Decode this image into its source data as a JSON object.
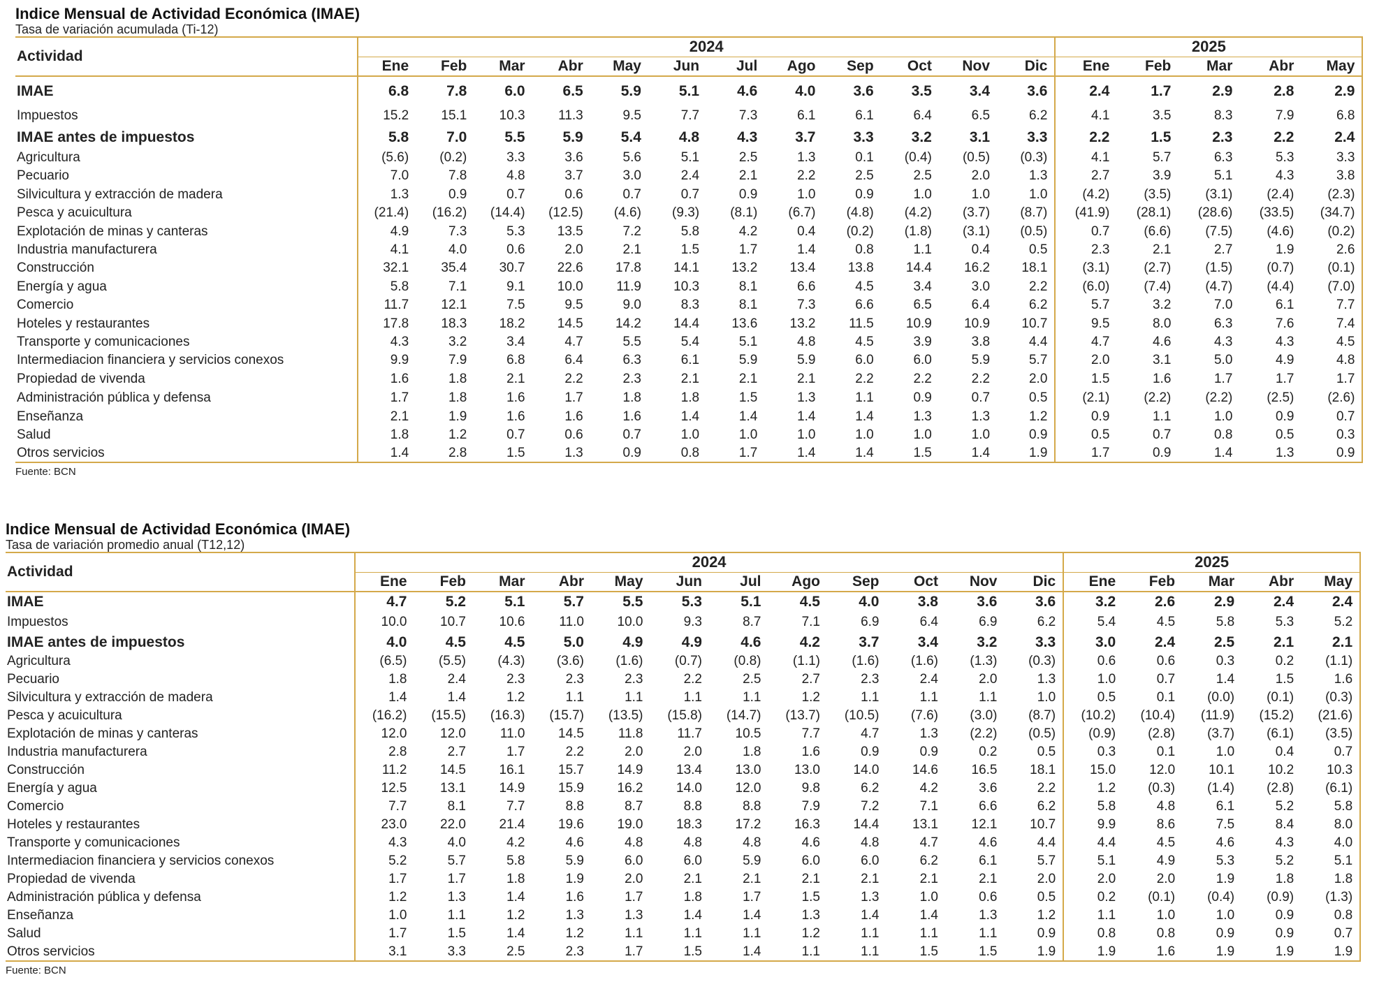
{
  "months": [
    "Ene",
    "Feb",
    "Mar",
    "Abr",
    "May",
    "Jun",
    "Jul",
    "Ago",
    "Sep",
    "Oct",
    "Nov",
    "Dic",
    "Ene",
    "Feb",
    "Mar",
    "Abr",
    "May"
  ],
  "years": [
    "2024",
    "2025"
  ],
  "header_actividad": "Actividad",
  "tables": [
    {
      "title": "Indice Mensual de Actividad Económica (IMAE)",
      "subtitle": "Tasa de variación acumulada (Ti-12)",
      "source": "Fuente: BCN",
      "rows": [
        {
          "label": "IMAE",
          "bold": true,
          "values": [
            "6.8",
            "7.8",
            "6.0",
            "6.5",
            "5.9",
            "5.1",
            "4.6",
            "4.0",
            "3.6",
            "3.5",
            "3.4",
            "3.6",
            "2.4",
            "1.7",
            "2.9",
            "2.8",
            "2.9"
          ]
        },
        {
          "label": "Impuestos",
          "bold": false,
          "values": [
            "15.2",
            "15.1",
            "10.3",
            "11.3",
            "9.5",
            "7.7",
            "7.3",
            "6.1",
            "6.1",
            "6.4",
            "6.5",
            "6.2",
            "4.1",
            "3.5",
            "8.3",
            "7.9",
            "6.8"
          ]
        },
        {
          "label": "IMAE antes de impuestos",
          "bold": true,
          "values": [
            "5.8",
            "7.0",
            "5.5",
            "5.9",
            "5.4",
            "4.8",
            "4.3",
            "3.7",
            "3.3",
            "3.2",
            "3.1",
            "3.3",
            "2.2",
            "1.5",
            "2.3",
            "2.2",
            "2.4"
          ]
        },
        {
          "label": "Agricultura",
          "bold": false,
          "values": [
            "(5.6)",
            "(0.2)",
            "3.3",
            "3.6",
            "5.6",
            "5.1",
            "2.5",
            "1.3",
            "0.1",
            "(0.4)",
            "(0.5)",
            "(0.3)",
            "4.1",
            "5.7",
            "6.3",
            "5.3",
            "3.3"
          ]
        },
        {
          "label": "Pecuario",
          "bold": false,
          "values": [
            "7.0",
            "7.8",
            "4.8",
            "3.7",
            "3.0",
            "2.4",
            "2.1",
            "2.2",
            "2.5",
            "2.5",
            "2.0",
            "1.3",
            "2.7",
            "3.9",
            "5.1",
            "4.3",
            "3.8"
          ]
        },
        {
          "label": "Silvicultura y extracción de madera",
          "bold": false,
          "values": [
            "1.3",
            "0.9",
            "0.7",
            "0.6",
            "0.7",
            "0.7",
            "0.9",
            "1.0",
            "0.9",
            "1.0",
            "1.0",
            "1.0",
            "(4.2)",
            "(3.5)",
            "(3.1)",
            "(2.4)",
            "(2.3)"
          ]
        },
        {
          "label": "Pesca y acuicultura",
          "bold": false,
          "values": [
            "(21.4)",
            "(16.2)",
            "(14.4)",
            "(12.5)",
            "(4.6)",
            "(9.3)",
            "(8.1)",
            "(6.7)",
            "(4.8)",
            "(4.2)",
            "(3.7)",
            "(8.7)",
            "(41.9)",
            "(28.1)",
            "(28.6)",
            "(33.5)",
            "(34.7)"
          ]
        },
        {
          "label": "Explotación de minas y canteras",
          "bold": false,
          "values": [
            "4.9",
            "7.3",
            "5.3",
            "13.5",
            "7.2",
            "5.8",
            "4.2",
            "0.4",
            "(0.2)",
            "(1.8)",
            "(3.1)",
            "(0.5)",
            "0.7",
            "(6.6)",
            "(7.5)",
            "(4.6)",
            "(0.2)"
          ]
        },
        {
          "label": "Industria manufacturera",
          "bold": false,
          "values": [
            "4.1",
            "4.0",
            "0.6",
            "2.0",
            "2.1",
            "1.5",
            "1.7",
            "1.4",
            "0.8",
            "1.1",
            "0.4",
            "0.5",
            "2.3",
            "2.1",
            "2.7",
            "1.9",
            "2.6"
          ]
        },
        {
          "label": "Construcción",
          "bold": false,
          "values": [
            "32.1",
            "35.4",
            "30.7",
            "22.6",
            "17.8",
            "14.1",
            "13.2",
            "13.4",
            "13.8",
            "14.4",
            "16.2",
            "18.1",
            "(3.1)",
            "(2.7)",
            "(1.5)",
            "(0.7)",
            "(0.1)"
          ]
        },
        {
          "label": "Energía y agua",
          "bold": false,
          "values": [
            "5.8",
            "7.1",
            "9.1",
            "10.0",
            "11.9",
            "10.3",
            "8.1",
            "6.6",
            "4.5",
            "3.4",
            "3.0",
            "2.2",
            "(6.0)",
            "(7.4)",
            "(4.7)",
            "(4.4)",
            "(7.0)"
          ]
        },
        {
          "label": "Comercio",
          "bold": false,
          "values": [
            "11.7",
            "12.1",
            "7.5",
            "9.5",
            "9.0",
            "8.3",
            "8.1",
            "7.3",
            "6.6",
            "6.5",
            "6.4",
            "6.2",
            "5.7",
            "3.2",
            "7.0",
            "6.1",
            "7.7"
          ]
        },
        {
          "label": "Hoteles y restaurantes",
          "bold": false,
          "values": [
            "17.8",
            "18.3",
            "18.2",
            "14.5",
            "14.2",
            "14.4",
            "13.6",
            "13.2",
            "11.5",
            "10.9",
            "10.9",
            "10.7",
            "9.5",
            "8.0",
            "6.3",
            "7.6",
            "7.4"
          ]
        },
        {
          "label": "Transporte y comunicaciones",
          "bold": false,
          "values": [
            "4.3",
            "3.2",
            "3.4",
            "4.7",
            "5.5",
            "5.4",
            "5.1",
            "4.8",
            "4.5",
            "3.9",
            "3.8",
            "4.4",
            "4.7",
            "4.6",
            "4.3",
            "4.3",
            "4.5"
          ]
        },
        {
          "label": "Intermediacion financiera y servicios conexos",
          "bold": false,
          "values": [
            "9.9",
            "7.9",
            "6.8",
            "6.4",
            "6.3",
            "6.1",
            "5.9",
            "5.9",
            "6.0",
            "6.0",
            "5.9",
            "5.7",
            "2.0",
            "3.1",
            "5.0",
            "4.9",
            "4.8"
          ]
        },
        {
          "label": "Propiedad de vivenda",
          "bold": false,
          "values": [
            "1.6",
            "1.8",
            "2.1",
            "2.2",
            "2.3",
            "2.1",
            "2.1",
            "2.1",
            "2.2",
            "2.2",
            "2.2",
            "2.0",
            "1.5",
            "1.6",
            "1.7",
            "1.7",
            "1.7"
          ]
        },
        {
          "label": "Administración pública y defensa",
          "bold": false,
          "values": [
            "1.7",
            "1.8",
            "1.6",
            "1.7",
            "1.8",
            "1.8",
            "1.5",
            "1.3",
            "1.1",
            "0.9",
            "0.7",
            "0.5",
            "(2.1)",
            "(2.2)",
            "(2.2)",
            "(2.5)",
            "(2.6)"
          ]
        },
        {
          "label": "Enseñanza",
          "bold": false,
          "values": [
            "2.1",
            "1.9",
            "1.6",
            "1.6",
            "1.6",
            "1.4",
            "1.4",
            "1.4",
            "1.4",
            "1.3",
            "1.3",
            "1.2",
            "0.9",
            "1.1",
            "1.0",
            "0.9",
            "0.7"
          ]
        },
        {
          "label": "Salud",
          "bold": false,
          "values": [
            "1.8",
            "1.2",
            "0.7",
            "0.6",
            "0.7",
            "1.0",
            "1.0",
            "1.0",
            "1.0",
            "1.0",
            "1.0",
            "0.9",
            "0.5",
            "0.7",
            "0.8",
            "0.5",
            "0.3"
          ]
        },
        {
          "label": "Otros servicios",
          "bold": false,
          "values": [
            "1.4",
            "2.8",
            "1.5",
            "1.3",
            "0.9",
            "0.8",
            "1.7",
            "1.4",
            "1.4",
            "1.5",
            "1.4",
            "1.9",
            "1.7",
            "0.9",
            "1.4",
            "1.3",
            "0.9"
          ]
        }
      ]
    },
    {
      "title": "Indice Mensual de Actividad Económica (IMAE)",
      "subtitle": "Tasa de variación promedio anual (T12,12)",
      "source": "Fuente: BCN",
      "rows": [
        {
          "label": "IMAE",
          "bold": true,
          "values": [
            "4.7",
            "5.2",
            "5.1",
            "5.7",
            "5.5",
            "5.3",
            "5.1",
            "4.5",
            "4.0",
            "3.8",
            "3.6",
            "3.6",
            "3.2",
            "2.6",
            "2.9",
            "2.4",
            "2.4"
          ]
        },
        {
          "label": "Impuestos",
          "bold": false,
          "values": [
            "10.0",
            "10.7",
            "10.6",
            "11.0",
            "10.0",
            "9.3",
            "8.7",
            "7.1",
            "6.9",
            "6.4",
            "6.9",
            "6.2",
            "5.4",
            "4.5",
            "5.8",
            "5.3",
            "5.2"
          ]
        },
        {
          "label": "IMAE antes de impuestos",
          "bold": true,
          "values": [
            "4.0",
            "4.5",
            "4.5",
            "5.0",
            "4.9",
            "4.9",
            "4.6",
            "4.2",
            "3.7",
            "3.4",
            "3.2",
            "3.3",
            "3.0",
            "2.4",
            "2.5",
            "2.1",
            "2.1"
          ]
        },
        {
          "label": "Agricultura",
          "bold": false,
          "values": [
            "(6.5)",
            "(5.5)",
            "(4.3)",
            "(3.6)",
            "(1.6)",
            "(0.7)",
            "(0.8)",
            "(1.1)",
            "(1.6)",
            "(1.6)",
            "(1.3)",
            "(0.3)",
            "0.6",
            "0.6",
            "0.3",
            "0.2",
            "(1.1)"
          ]
        },
        {
          "label": "Pecuario",
          "bold": false,
          "values": [
            "1.8",
            "2.4",
            "2.3",
            "2.3",
            "2.3",
            "2.2",
            "2.5",
            "2.7",
            "2.3",
            "2.4",
            "2.0",
            "1.3",
            "1.0",
            "0.7",
            "1.4",
            "1.5",
            "1.6"
          ]
        },
        {
          "label": "Silvicultura y extracción de madera",
          "bold": false,
          "values": [
            "1.4",
            "1.4",
            "1.2",
            "1.1",
            "1.1",
            "1.1",
            "1.1",
            "1.2",
            "1.1",
            "1.1",
            "1.1",
            "1.0",
            "0.5",
            "0.1",
            "(0.0)",
            "(0.1)",
            "(0.3)"
          ]
        },
        {
          "label": "Pesca y acuicultura",
          "bold": false,
          "values": [
            "(16.2)",
            "(15.5)",
            "(16.3)",
            "(15.7)",
            "(13.5)",
            "(15.8)",
            "(14.7)",
            "(13.7)",
            "(10.5)",
            "(7.6)",
            "(3.0)",
            "(8.7)",
            "(10.2)",
            "(10.4)",
            "(11.9)",
            "(15.2)",
            "(21.6)"
          ]
        },
        {
          "label": "Explotación de minas y canteras",
          "bold": false,
          "values": [
            "12.0",
            "12.0",
            "11.0",
            "14.5",
            "11.8",
            "11.7",
            "10.5",
            "7.7",
            "4.7",
            "1.3",
            "(2.2)",
            "(0.5)",
            "(0.9)",
            "(2.8)",
            "(3.7)",
            "(6.1)",
            "(3.5)"
          ]
        },
        {
          "label": "Industria manufacturera",
          "bold": false,
          "values": [
            "2.8",
            "2.7",
            "1.7",
            "2.2",
            "2.0",
            "2.0",
            "1.8",
            "1.6",
            "0.9",
            "0.9",
            "0.2",
            "0.5",
            "0.3",
            "0.1",
            "1.0",
            "0.4",
            "0.7"
          ]
        },
        {
          "label": "Construcción",
          "bold": false,
          "values": [
            "11.2",
            "14.5",
            "16.1",
            "15.7",
            "14.9",
            "13.4",
            "13.0",
            "13.0",
            "14.0",
            "14.6",
            "16.5",
            "18.1",
            "15.0",
            "12.0",
            "10.1",
            "10.2",
            "10.3"
          ]
        },
        {
          "label": "Energía y agua",
          "bold": false,
          "values": [
            "12.5",
            "13.1",
            "14.9",
            "15.9",
            "16.2",
            "14.0",
            "12.0",
            "9.8",
            "6.2",
            "4.2",
            "3.6",
            "2.2",
            "1.2",
            "(0.3)",
            "(1.4)",
            "(2.8)",
            "(6.1)"
          ]
        },
        {
          "label": "Comercio",
          "bold": false,
          "values": [
            "7.7",
            "8.1",
            "7.7",
            "8.8",
            "8.7",
            "8.8",
            "8.8",
            "7.9",
            "7.2",
            "7.1",
            "6.6",
            "6.2",
            "5.8",
            "4.8",
            "6.1",
            "5.2",
            "5.8"
          ]
        },
        {
          "label": "Hoteles y restaurantes",
          "bold": false,
          "values": [
            "23.0",
            "22.0",
            "21.4",
            "19.6",
            "19.0",
            "18.3",
            "17.2",
            "16.3",
            "14.4",
            "13.1",
            "12.1",
            "10.7",
            "9.9",
            "8.6",
            "7.5",
            "8.4",
            "8.0"
          ]
        },
        {
          "label": "Transporte y comunicaciones",
          "bold": false,
          "values": [
            "4.3",
            "4.0",
            "4.2",
            "4.6",
            "4.8",
            "4.8",
            "4.8",
            "4.6",
            "4.8",
            "4.7",
            "4.6",
            "4.4",
            "4.4",
            "4.5",
            "4.6",
            "4.3",
            "4.0"
          ]
        },
        {
          "label": "Intermediacion financiera y servicios conexos",
          "bold": false,
          "values": [
            "5.2",
            "5.7",
            "5.8",
            "5.9",
            "6.0",
            "6.0",
            "5.9",
            "6.0",
            "6.0",
            "6.2",
            "6.1",
            "5.7",
            "5.1",
            "4.9",
            "5.3",
            "5.2",
            "5.1"
          ]
        },
        {
          "label": "Propiedad de vivenda",
          "bold": false,
          "values": [
            "1.7",
            "1.7",
            "1.8",
            "1.9",
            "2.0",
            "2.1",
            "2.1",
            "2.1",
            "2.1",
            "2.1",
            "2.1",
            "2.0",
            "2.0",
            "2.0",
            "1.9",
            "1.8",
            "1.8"
          ]
        },
        {
          "label": "Administración pública y defensa",
          "bold": false,
          "values": [
            "1.2",
            "1.3",
            "1.4",
            "1.6",
            "1.7",
            "1.8",
            "1.7",
            "1.5",
            "1.3",
            "1.0",
            "0.6",
            "0.5",
            "0.2",
            "(0.1)",
            "(0.4)",
            "(0.9)",
            "(1.3)"
          ]
        },
        {
          "label": "Enseñanza",
          "bold": false,
          "values": [
            "1.0",
            "1.1",
            "1.2",
            "1.3",
            "1.3",
            "1.4",
            "1.4",
            "1.3",
            "1.4",
            "1.4",
            "1.3",
            "1.2",
            "1.1",
            "1.0",
            "1.0",
            "0.9",
            "0.8"
          ]
        },
        {
          "label": "Salud",
          "bold": false,
          "values": [
            "1.7",
            "1.5",
            "1.4",
            "1.2",
            "1.1",
            "1.1",
            "1.1",
            "1.2",
            "1.1",
            "1.1",
            "1.1",
            "0.9",
            "0.8",
            "0.8",
            "0.9",
            "0.9",
            "0.7"
          ]
        },
        {
          "label": "Otros servicios",
          "bold": false,
          "values": [
            "3.1",
            "3.3",
            "2.5",
            "2.3",
            "1.7",
            "1.5",
            "1.4",
            "1.1",
            "1.1",
            "1.5",
            "1.5",
            "1.9",
            "1.9",
            "1.6",
            "1.9",
            "1.9",
            "1.9"
          ]
        }
      ]
    }
  ]
}
